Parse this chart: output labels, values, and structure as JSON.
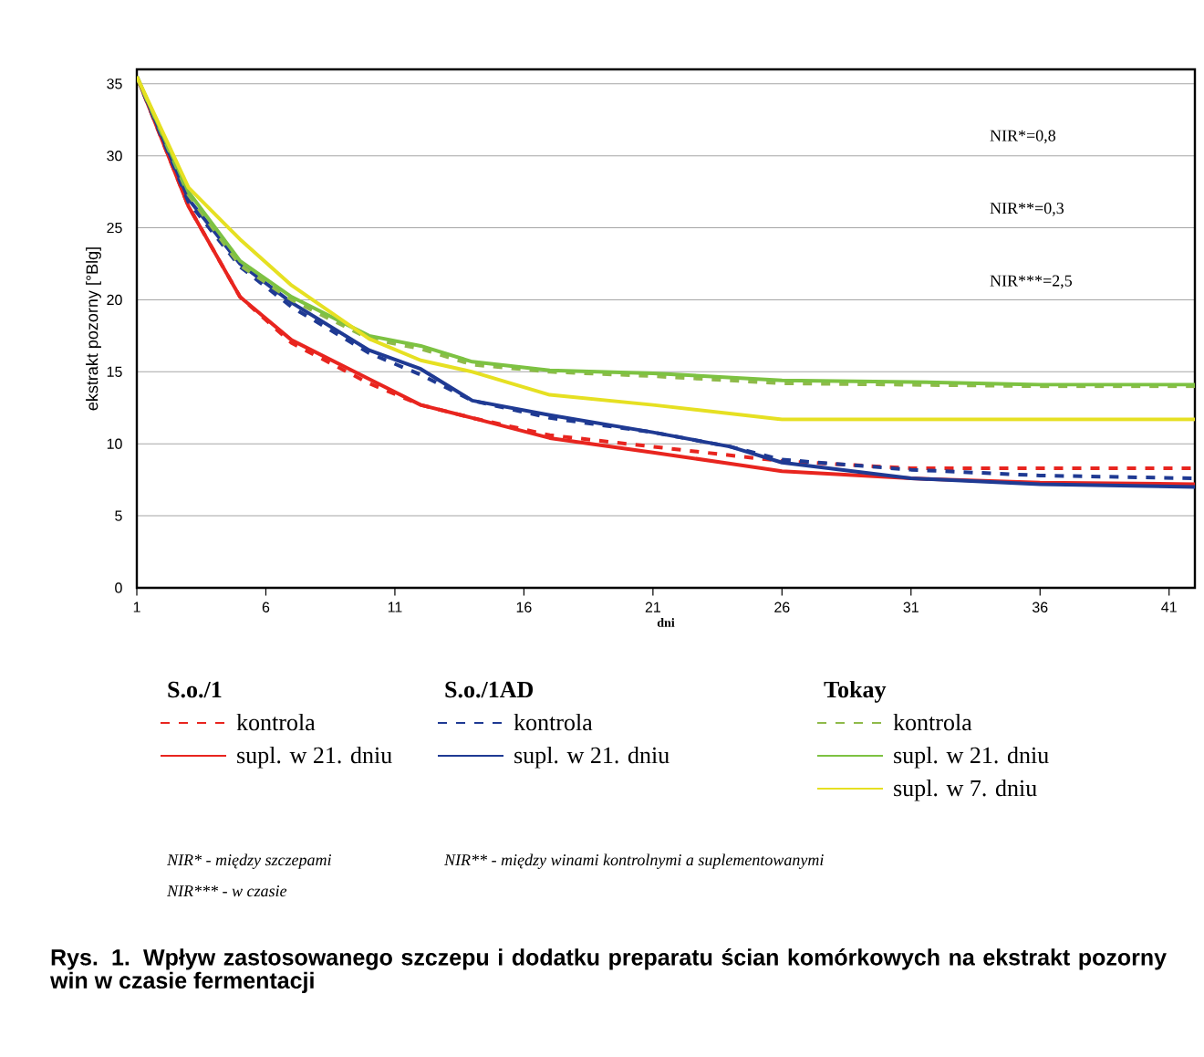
{
  "chart_data": {
    "type": "line",
    "title": "Rys. 1. Wpływ zastosowanego szczepu i dodatku preparatu ścian komórkowych na ekstrakt pozorny win w czasie fermentacji",
    "xlabel": "dni",
    "ylabel": "ekstrakt pozorny [°Blg]",
    "xlim": [
      1,
      42
    ],
    "ylim": [
      0,
      36
    ],
    "xticks": [
      1,
      6,
      11,
      16,
      21,
      26,
      31,
      36,
      41
    ],
    "yticks": [
      0,
      5,
      10,
      15,
      20,
      25,
      30,
      35
    ],
    "grid": "y",
    "legend": "bottom",
    "marker": "none",
    "annotations": [
      "NIR*=0,8",
      "NIR**=0,3",
      "NIR***=2,5",
      "S.o./1",
      "S.o./1AD",
      "Tokay",
      "NIR* - między szczepami",
      "NIR*** - w czasie",
      "NIR** - między winami kontrolnymi a  suplementowanymi"
    ],
    "series": [
      {
        "name": "kontrola",
        "color": "#e8251f",
        "line_style": "dashed",
        "x": [
          1,
          3,
          5,
          7,
          10,
          12,
          14,
          17,
          21,
          26,
          31,
          36,
          42
        ],
        "values": [
          35.5,
          26.5,
          20.2,
          17.0,
          14.2,
          12.7,
          11.8,
          10.6,
          9.8,
          8.8,
          8.3,
          8.3,
          8.3
        ]
      },
      {
        "name": "supl. w 21. dniu",
        "color": "#e8251f",
        "line_style": "solid",
        "x": [
          1,
          3,
          5,
          7,
          10,
          12,
          14,
          17,
          21,
          26,
          31,
          36,
          42
        ],
        "values": [
          35.5,
          26.5,
          20.2,
          17.2,
          14.5,
          12.7,
          11.8,
          10.4,
          9.4,
          8.1,
          7.6,
          7.3,
          7.2
        ]
      },
      {
        "name": "kontrola",
        "color": "#1f3a93",
        "line_style": "dashed",
        "x": [
          1,
          3,
          5,
          7,
          10,
          12,
          14,
          17,
          21,
          24,
          26,
          31,
          36,
          42
        ],
        "values": [
          35.5,
          26.8,
          22.3,
          19.5,
          16.3,
          14.8,
          13.0,
          11.8,
          10.8,
          9.8,
          8.9,
          8.2,
          7.8,
          7.6
        ]
      },
      {
        "name": "supl. w 21. dniu",
        "color": "#1f3a93",
        "line_style": "solid",
        "x": [
          1,
          3,
          5,
          7,
          10,
          12,
          14,
          17,
          21,
          24,
          26,
          31,
          36,
          42
        ],
        "values": [
          35.5,
          27.0,
          22.5,
          19.8,
          16.5,
          15.2,
          13.0,
          12.0,
          10.8,
          9.8,
          8.7,
          7.6,
          7.2,
          7.0
        ]
      },
      {
        "name": "kontrola",
        "color": "#8fba4a",
        "line_style": "dashed",
        "x": [
          1,
          3,
          5,
          7,
          10,
          12,
          14,
          17,
          21,
          26,
          31,
          36,
          42
        ],
        "values": [
          35.5,
          27.3,
          22.4,
          20.0,
          17.3,
          16.6,
          15.5,
          15.0,
          14.7,
          14.2,
          14.1,
          14.0,
          14.0
        ]
      },
      {
        "name": "supl. w 21. dniu",
        "color": "#7dc242",
        "line_style": "solid",
        "x": [
          1,
          3,
          5,
          7,
          10,
          12,
          14,
          17,
          21,
          26,
          31,
          36,
          42
        ],
        "values": [
          35.5,
          27.5,
          22.7,
          20.2,
          17.5,
          16.8,
          15.7,
          15.1,
          14.9,
          14.4,
          14.3,
          14.1,
          14.1
        ]
      },
      {
        "name": "supl. w 7. dniu",
        "color": "#e6e022",
        "line_style": "solid",
        "x": [
          1,
          3,
          5,
          7,
          10,
          12,
          14,
          17,
          21,
          26,
          31,
          36,
          42
        ],
        "values": [
          35.5,
          27.8,
          24.2,
          21.0,
          17.3,
          15.8,
          15.0,
          13.4,
          12.7,
          11.7,
          11.7,
          11.7,
          11.7
        ]
      }
    ]
  }
}
